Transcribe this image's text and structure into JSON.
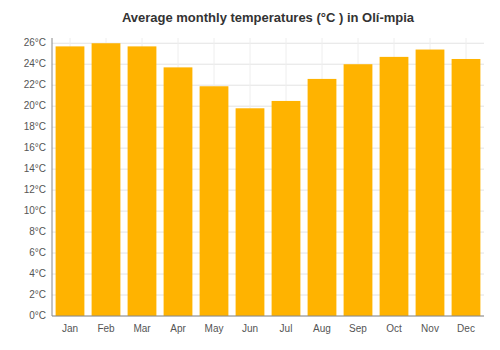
{
  "chart_data": {
    "type": "bar",
    "title": "Average monthly temperatures (°C ) in Olí-mpia",
    "categories": [
      "Jan",
      "Feb",
      "Mar",
      "Apr",
      "May",
      "Jun",
      "Jul",
      "Aug",
      "Sep",
      "Oct",
      "Nov",
      "Dec"
    ],
    "values": [
      25.7,
      26.0,
      25.7,
      23.7,
      21.9,
      19.8,
      20.5,
      22.6,
      24.0,
      24.7,
      25.4,
      24.5
    ],
    "color": "#FFB300",
    "ylim": [
      0,
      26.5
    ],
    "yticks": [
      {
        "value": 0,
        "label": "0°C"
      },
      {
        "value": 2,
        "label": "2°C"
      },
      {
        "value": 4,
        "label": "4°C"
      },
      {
        "value": 6,
        "label": "6°C"
      },
      {
        "value": 8,
        "label": "8°C"
      },
      {
        "value": 10,
        "label": "10°C"
      },
      {
        "value": 12,
        "label": "12°C"
      },
      {
        "value": 14,
        "label": "14°C"
      },
      {
        "value": 16,
        "label": "16°C"
      },
      {
        "value": 18,
        "label": "18°C"
      },
      {
        "value": 20,
        "label": "20°C"
      },
      {
        "value": 22,
        "label": "22°C"
      },
      {
        "value": 24,
        "label": "24°C"
      },
      {
        "value": 26,
        "label": "26°C"
      }
    ],
    "grid": true
  }
}
